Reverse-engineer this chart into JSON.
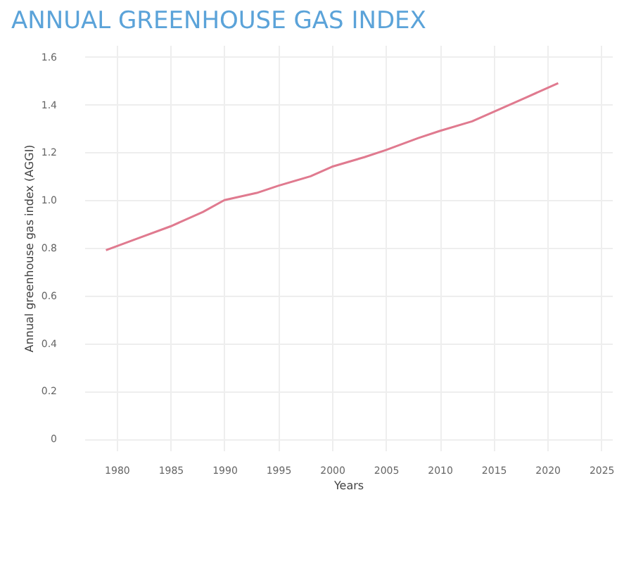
{
  "chart_data": {
    "type": "line",
    "title": "ANNUAL GREENHOUSE GAS INDEX",
    "xlabel": "Years",
    "ylabel": "Annual greenhouse gas index (AGGI)",
    "x": [
      1979,
      1982,
      1985,
      1988,
      1990,
      1993,
      1995,
      1998,
      2000,
      2003,
      2005,
      2008,
      2010,
      2013,
      2015,
      2018,
      2021
    ],
    "series": [
      {
        "color": "#e07a8f",
        "values": [
          0.79,
          0.84,
          0.89,
          0.95,
          1.0,
          1.03,
          1.06,
          1.1,
          1.14,
          1.18,
          1.21,
          1.26,
          1.29,
          1.33,
          1.37,
          1.43,
          1.49
        ]
      }
    ],
    "xlim": [
      1977,
      2026
    ],
    "xticks": [
      1980,
      1985,
      1990,
      1995,
      2000,
      2005,
      2010,
      2015,
      2020,
      2025
    ],
    "ylim": [
      -0.05,
      1.65
    ],
    "yticks": [
      0,
      0.2,
      0.4,
      0.6,
      0.8,
      {
        "value": 1,
        "label": "1.0"
      },
      1.2,
      1.4,
      1.6
    ],
    "grid": true,
    "marker": "none",
    "line_style": "solid"
  }
}
